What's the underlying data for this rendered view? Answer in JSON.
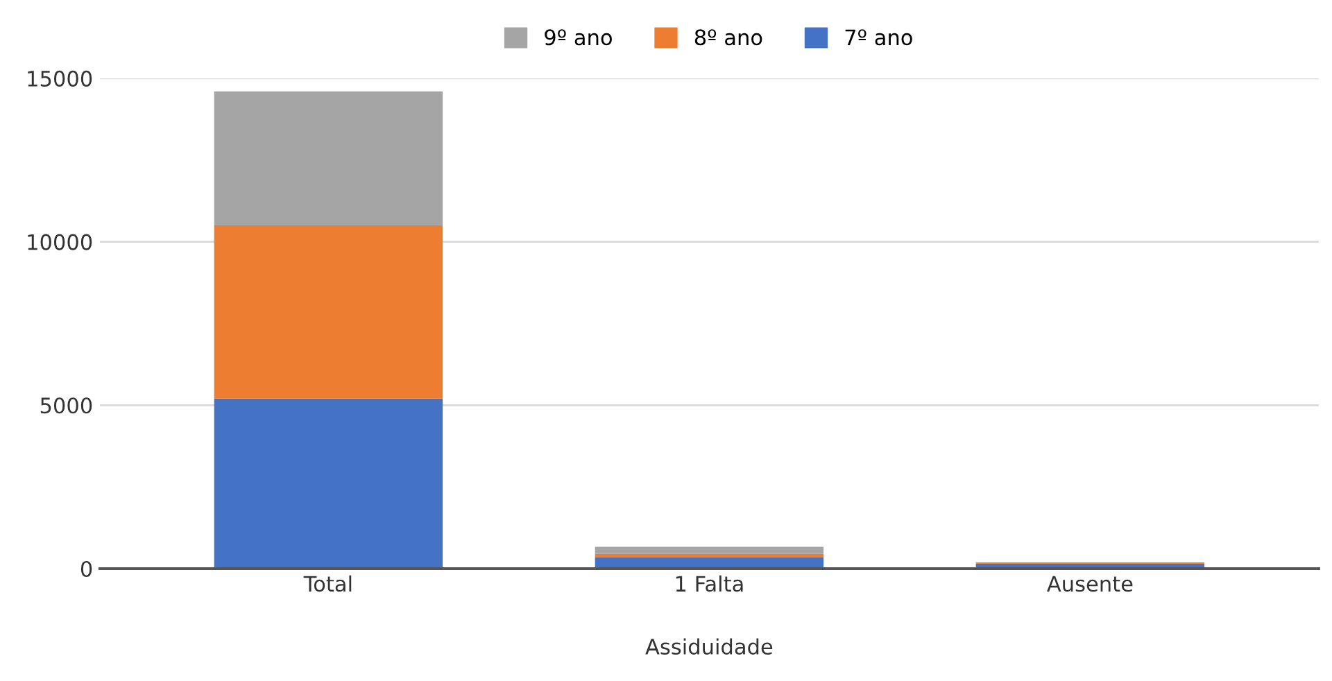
{
  "chart_data": {
    "type": "bar",
    "stacked": true,
    "xlabel": "Assiduidade",
    "categories": [
      "Total",
      "1 Falta",
      "Ausente"
    ],
    "series": [
      {
        "name": "7º ano",
        "color": "#4472c4",
        "values": [
          5200,
          340,
          150
        ]
      },
      {
        "name": "8º ano",
        "color": "#ed7d31",
        "values": [
          5300,
          110,
          40
        ]
      },
      {
        "name": "9º ano",
        "color": "#a5a5a5",
        "values": [
          4100,
          220,
          0
        ]
      }
    ],
    "ylim": [
      0,
      15000
    ],
    "yticks": [
      0,
      5000,
      10000,
      15000
    ],
    "grid": "y",
    "legend": "top"
  }
}
